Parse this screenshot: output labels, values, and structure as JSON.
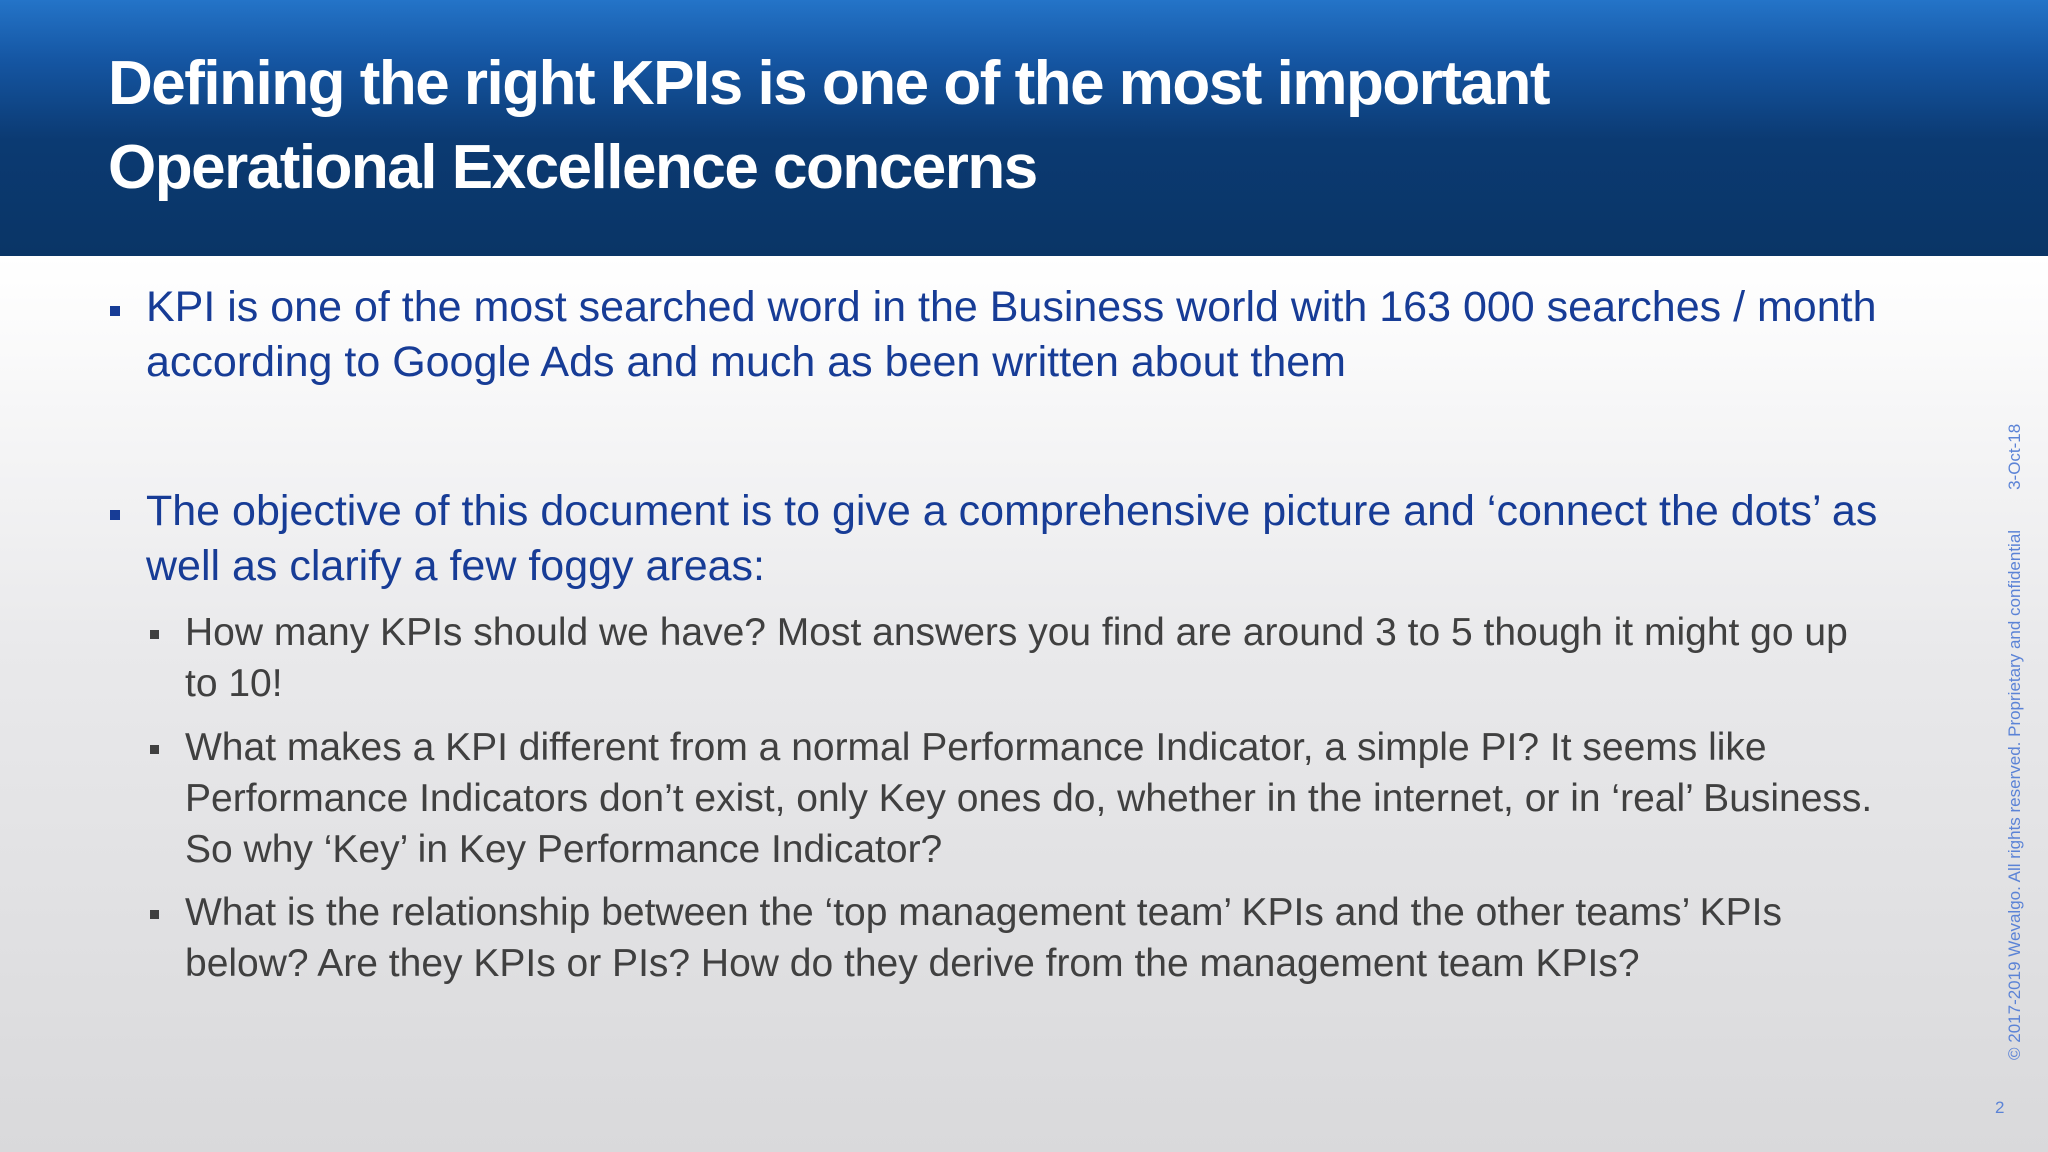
{
  "header": {
    "title_lines": [
      "Defining the right KPIs is one of the most important",
      "Operational Excellence concerns"
    ]
  },
  "bullets": [
    {
      "text": "KPI is one of the most searched word in the Business world with 163 000 searches / month according to Google Ads and much as been written about them"
    },
    {
      "text": "The objective of this document is to give a comprehensive picture and ‘connect the dots’ as well as clarify a few foggy areas:",
      "sub": [
        "How many KPIs should we have? Most answers you find are around 3 to 5 though it might go up to 10!",
        "What makes a KPI different from a normal Performance Indicator, a simple PI? It seems like Performance Indicators don’t exist, only Key ones do, whether in the internet, or in ‘real’ Business. So why ‘Key’ in Key Performance Indicator?",
        "What is the relationship between the ‘top management team’ KPIs and the other teams’ KPIs below? Are they KPIs or PIs? How do they derive from the management team KPIs?"
      ]
    }
  ],
  "side_note": "© 2017-2019 Wevalgo. All rights reserved. Proprietary and confidential",
  "date": "3-Oct-18",
  "page_number": "2"
}
